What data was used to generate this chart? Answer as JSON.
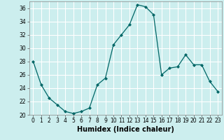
{
  "x": [
    0,
    1,
    2,
    3,
    4,
    5,
    6,
    7,
    8,
    9,
    10,
    11,
    12,
    13,
    14,
    15,
    16,
    17,
    18,
    19,
    20,
    21,
    22,
    23
  ],
  "y": [
    28.0,
    24.5,
    22.5,
    21.5,
    20.5,
    20.2,
    20.5,
    21.0,
    24.5,
    25.5,
    30.5,
    32.0,
    33.5,
    36.5,
    36.2,
    35.0,
    26.0,
    27.0,
    27.2,
    29.0,
    27.5,
    27.5,
    25.0,
    23.5
  ],
  "line_color": "#006666",
  "marker": "D",
  "marker_size": 2.0,
  "bg_color": "#cceeee",
  "grid_color": "#ffffff",
  "xlabel": "Humidex (Indice chaleur)",
  "ylim": [
    20,
    37
  ],
  "xlim": [
    -0.5,
    23.5
  ],
  "yticks": [
    20,
    22,
    24,
    26,
    28,
    30,
    32,
    34,
    36
  ],
  "xticks": [
    0,
    1,
    2,
    3,
    4,
    5,
    6,
    7,
    8,
    9,
    10,
    11,
    12,
    13,
    14,
    15,
    16,
    17,
    18,
    19,
    20,
    21,
    22,
    23
  ],
  "tick_labelsize": 5.5,
  "xlabel_fontsize": 7.0
}
